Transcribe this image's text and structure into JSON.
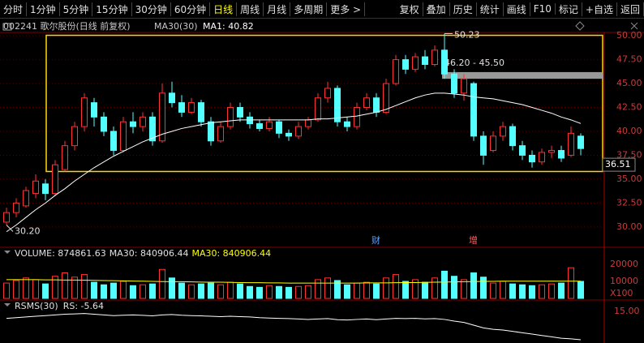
{
  "toolbar": {
    "left": [
      "分时",
      "1分钟",
      "5分钟",
      "15分钟",
      "30分钟",
      "60分钟",
      "日线",
      "周线",
      "月线",
      "多周期",
      "更多 >"
    ],
    "active": "日线",
    "right": [
      "复权",
      "叠加",
      "历史",
      "统计",
      "画线",
      "F10",
      "标记",
      "+自选",
      "返回"
    ]
  },
  "info": {
    "stock": "002241 歌尔股份(日线 前复权)",
    "indicator": "MA30(30)",
    "ma_value": "MA1: 40.82"
  },
  "chart_data": [
    {
      "type": "candlestick",
      "name": "price",
      "candles": [
        [
          30.5,
          31.5,
          32,
          30.2
        ],
        [
          31.5,
          32.5,
          33,
          31
        ],
        [
          32.2,
          33.8,
          34.2,
          32
        ],
        [
          33.5,
          34.8,
          35.5,
          33
        ],
        [
          34.5,
          33.5,
          35,
          32.8
        ],
        [
          33.5,
          36.5,
          37,
          33.2
        ],
        [
          36,
          38.5,
          39,
          35.8
        ],
        [
          38.5,
          40.5,
          41,
          38
        ],
        [
          40.5,
          43.5,
          44,
          40
        ],
        [
          43,
          41.5,
          43.5,
          40.5
        ],
        [
          41.5,
          40,
          42,
          39.5
        ],
        [
          40,
          38,
          40.5,
          37.5
        ],
        [
          38,
          41,
          41.5,
          37.8
        ],
        [
          41,
          40.5,
          42,
          39.8
        ],
        [
          40.5,
          41.5,
          42,
          40
        ],
        [
          41.5,
          39,
          42,
          38.5
        ],
        [
          39,
          44,
          45,
          38.8
        ],
        [
          44,
          43,
          45.2,
          42.5
        ],
        [
          43,
          42,
          43.8,
          41.5
        ],
        [
          42,
          43,
          43.5,
          41.8
        ],
        [
          43,
          41,
          43.3,
          40.5
        ],
        [
          41,
          39,
          41.5,
          38.5
        ],
        [
          39,
          40.5,
          41,
          38.8
        ],
        [
          40.5,
          42.5,
          43,
          40.2
        ],
        [
          42.5,
          41.5,
          43,
          41
        ],
        [
          41.5,
          40.8,
          42,
          40.3
        ],
        [
          40.8,
          40.3,
          41.2,
          40
        ],
        [
          40.3,
          41,
          41.5,
          40
        ],
        [
          41,
          39.8,
          41.2,
          39.3
        ],
        [
          39.8,
          39.5,
          40.2,
          39
        ],
        [
          39.5,
          40.5,
          41,
          39.2
        ],
        [
          40.5,
          41.2,
          41.5,
          40.2
        ],
        [
          41.2,
          43.5,
          44,
          41
        ],
        [
          43.5,
          44.5,
          45.2,
          43
        ],
        [
          44.5,
          41,
          44.8,
          40.5
        ],
        [
          41,
          40.5,
          41.5,
          40
        ],
        [
          40.5,
          42.5,
          43,
          40.2
        ],
        [
          42.5,
          43.5,
          44,
          42.2
        ],
        [
          43.5,
          42,
          44,
          41.5
        ],
        [
          42,
          45,
          45.5,
          41.8
        ],
        [
          45,
          47.5,
          48,
          44.8
        ],
        [
          47.5,
          46.5,
          48,
          46
        ],
        [
          46.5,
          47.8,
          48.2,
          46.2
        ],
        [
          47.8,
          47,
          48.5,
          46.5
        ],
        [
          47,
          48.5,
          49,
          46.8
        ],
        [
          48.5,
          46,
          50.23,
          45.5
        ],
        [
          46,
          44,
          46.5,
          43.5
        ],
        [
          44,
          45.5,
          46,
          43.2
        ],
        [
          45,
          39.5,
          45.2,
          39
        ],
        [
          39.5,
          37.5,
          40,
          36.5
        ],
        [
          38,
          39.5,
          40,
          37.8
        ],
        [
          39.5,
          40.5,
          41,
          39
        ],
        [
          40.5,
          38.5,
          40.8,
          38
        ],
        [
          38.5,
          37.5,
          39,
          37
        ],
        [
          37.5,
          36.8,
          38,
          36.2
        ],
        [
          36.8,
          37.8,
          38.2,
          36.5
        ],
        [
          37.8,
          38,
          38.5,
          37.2
        ],
        [
          38,
          37.2,
          38.5,
          36.8
        ],
        [
          37.5,
          39.8,
          40.5,
          37.3
        ],
        [
          39.5,
          38.2,
          39.8,
          37.5
        ]
      ],
      "ma": {
        "color": "#ffffff",
        "values": [
          29.5,
          30.2,
          31,
          31.8,
          32.5,
          33.3,
          34,
          34.8,
          35.5,
          36.2,
          36.8,
          37.4,
          37.9,
          38.4,
          38.9,
          39.3,
          39.7,
          40,
          40.3,
          40.5,
          40.7,
          40.9,
          41,
          41.1,
          41.2,
          41.2,
          41.2,
          41.2,
          41.2,
          41.2,
          41.2,
          41.2,
          41.3,
          41.3,
          41.4,
          41.5,
          41.6,
          41.8,
          42,
          42.3,
          42.7,
          43.1,
          43.5,
          43.8,
          44,
          44,
          43.9,
          43.8,
          43.6,
          43.5,
          43.4,
          43.2,
          43,
          42.8,
          42.5,
          42.2,
          41.9,
          41.5,
          41.2,
          40.82
        ]
      },
      "up_color": "#ff3232",
      "down_color": "#54ffff",
      "ylim": [
        27.95,
        50.35
      ],
      "yticks": [
        {
          "value": 50,
          "label": "50.00"
        },
        {
          "value": 47.5,
          "label": "47.50"
        },
        {
          "value": 45,
          "label": "45.00"
        },
        {
          "value": 42.5,
          "label": "42.50"
        },
        {
          "value": 40,
          "label": "40.00"
        },
        {
          "value": 37.5,
          "label": "37.50"
        },
        {
          "value": 35,
          "label": "35.00"
        },
        {
          "value": 32.5,
          "label": "32.50"
        },
        {
          "value": 30,
          "label": "30.00"
        }
      ],
      "high_label": "50.23",
      "low_label": "30.20",
      "band": {
        "label": "46.20 - 45.50",
        "high": 46.2,
        "low": 45.5
      },
      "box": {
        "high": 50.05,
        "low": 35.8
      },
      "current_label": {
        "value": 36.51,
        "label": "36.51"
      },
      "events": [
        {
          "index": 38,
          "label": "财"
        },
        {
          "index": 48,
          "label": "增"
        }
      ]
    },
    {
      "type": "bar",
      "name": "volume",
      "header": [
        "VOLUME: 874861.63",
        "MA30: 840906.44",
        "MA30: 840906.44"
      ],
      "values": [
        9000,
        10500,
        12000,
        11000,
        8500,
        13000,
        15000,
        12500,
        14000,
        9500,
        8000,
        9000,
        10000,
        7500,
        8000,
        8500,
        17000,
        12000,
        9000,
        8000,
        8500,
        9000,
        8000,
        9500,
        8500,
        7000,
        6500,
        7500,
        7000,
        6500,
        7000,
        7500,
        11000,
        12000,
        10500,
        8000,
        9000,
        9500,
        8500,
        12000,
        14000,
        10000,
        11000,
        9500,
        12000,
        16000,
        13000,
        11000,
        15000,
        12500,
        9000,
        10000,
        8500,
        8000,
        7500,
        8000,
        8500,
        9000,
        18000,
        10000
      ],
      "ma": [
        11000,
        11000,
        11000,
        11000,
        10900,
        10900,
        10800,
        10800,
        10700,
        10600,
        10500,
        10400,
        10300,
        10200,
        10100,
        10000,
        9900,
        9800,
        9800,
        9700,
        9600,
        9500,
        9500,
        9400,
        9300,
        9200,
        9200,
        9100,
        9100,
        9000,
        9000,
        9000,
        9000,
        9000,
        9000,
        9000,
        9000,
        9100,
        9100,
        9100,
        9200,
        9300,
        9300,
        9400,
        9500,
        9600,
        9700,
        9800,
        9900,
        10000,
        10000,
        10100,
        10100,
        10100,
        10100,
        10100,
        10100,
        10100,
        10100,
        10100
      ],
      "ylim": [
        0,
        22000
      ],
      "yticks": [
        20000,
        10000
      ],
      "unit": "X100"
    },
    {
      "type": "line",
      "name": "rsms",
      "header": [
        "RSMS(30)",
        "RS: -5.64"
      ],
      "values": [
        10,
        10.5,
        11,
        11.5,
        12,
        12.5,
        13,
        13.2,
        13.5,
        13,
        12.5,
        12,
        12.3,
        12.5,
        12.2,
        11.8,
        12.5,
        12.8,
        12.3,
        12,
        11.8,
        11.5,
        11.2,
        11.5,
        11.2,
        11,
        10.5,
        10.2,
        10,
        9.8,
        9.5,
        9.2,
        9.5,
        9.8,
        9,
        8.8,
        9.2,
        9.5,
        9,
        9.5,
        10,
        9.8,
        10,
        9.6,
        9.8,
        9.2,
        8,
        7,
        5,
        3,
        2,
        1.5,
        0.5,
        -0.5,
        -1.5,
        -2.5,
        -3.5,
        -4.5,
        -5,
        -5.64
      ],
      "ylim": [
        -8,
        21
      ],
      "yticks": [
        {
          "value": 15,
          "label": "15.00"
        }
      ]
    }
  ]
}
